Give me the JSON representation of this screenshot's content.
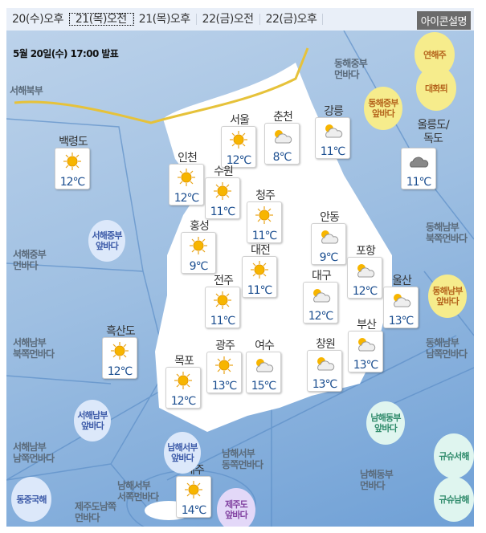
{
  "tabs": [
    {
      "label": "20(수)오후",
      "active": false
    },
    {
      "label": "21(목)오전",
      "active": true
    },
    {
      "label": "21(목)오후",
      "active": false
    },
    {
      "label": "22(금)오전",
      "active": false
    },
    {
      "label": "22(금)오후",
      "active": false
    }
  ],
  "legend_button": "아이콘설명",
  "issued": "5월 20일(수) 17:00 발표",
  "cities": [
    {
      "name": "백령도",
      "temp": "12℃",
      "icon": "sun-icon"
    },
    {
      "name": "서울",
      "temp": "12℃",
      "icon": "sun-icon"
    },
    {
      "name": "춘천",
      "temp": "8℃",
      "icon": "partly-cloudy-icon"
    },
    {
      "name": "강릉",
      "temp": "11℃",
      "icon": "partly-cloudy-icon"
    },
    {
      "name": "울릉도/독도",
      "temp": "11℃",
      "icon": "cloudy-icon"
    },
    {
      "name": "인천",
      "temp": "12℃",
      "icon": "sun-icon"
    },
    {
      "name": "수원",
      "temp": "11℃",
      "icon": "sun-icon"
    },
    {
      "name": "청주",
      "temp": "11℃",
      "icon": "sun-icon"
    },
    {
      "name": "홍성",
      "temp": "9℃",
      "icon": "sun-icon"
    },
    {
      "name": "안동",
      "temp": "9℃",
      "icon": "partly-cloudy-icon"
    },
    {
      "name": "대전",
      "temp": "11℃",
      "icon": "sun-icon"
    },
    {
      "name": "포항",
      "temp": "12℃",
      "icon": "partly-cloudy-icon"
    },
    {
      "name": "전주",
      "temp": "11℃",
      "icon": "sun-icon"
    },
    {
      "name": "대구",
      "temp": "12℃",
      "icon": "partly-cloudy-icon"
    },
    {
      "name": "울산",
      "temp": "13℃",
      "icon": "partly-cloudy-icon"
    },
    {
      "name": "흑산도",
      "temp": "12℃",
      "icon": "sun-icon"
    },
    {
      "name": "광주",
      "temp": "13℃",
      "icon": "sun-icon"
    },
    {
      "name": "여수",
      "temp": "15℃",
      "icon": "partly-cloudy-icon"
    },
    {
      "name": "부산",
      "temp": "13℃",
      "icon": "partly-cloudy-icon"
    },
    {
      "name": "창원",
      "temp": "13℃",
      "icon": "partly-cloudy-icon"
    },
    {
      "name": "목포",
      "temp": "12℃",
      "icon": "sun-icon"
    },
    {
      "name": "제주",
      "temp": "14℃",
      "icon": "sun-icon"
    }
  ],
  "sea_areas": [
    "서해북부",
    "동해중부\n먼바다",
    "서해중부\n먼바다",
    "동해남부\n북쪽먼바다",
    "서해남부\n북쪽먼바다",
    "동해남부\n남쪽먼바다",
    "서해남부\n남쪽먼바다",
    "남해서부\n서쪽먼바다",
    "남해서부\n동쪽먼바다",
    "남해동부\n먼바다",
    "제주도남쪽\n먼바다"
  ],
  "bubbles": [
    {
      "label": "연해주",
      "color": "yellow"
    },
    {
      "label": "대화퇴",
      "color": "yellow"
    },
    {
      "label": "동해중부\n앞바다",
      "color": "yellow"
    },
    {
      "label": "동해남부\n앞바다",
      "color": "yellow"
    },
    {
      "label": "서해중부\n앞바다",
      "color": "blue"
    },
    {
      "label": "서해남부\n앞바다",
      "color": "blue"
    },
    {
      "label": "남해서부\n앞바다",
      "color": "blue"
    },
    {
      "label": "동중국해",
      "color": "blue"
    },
    {
      "label": "남해동부\n앞바다",
      "color": "green"
    },
    {
      "label": "규슈서해",
      "color": "green"
    },
    {
      "label": "규슈남해",
      "color": "green"
    },
    {
      "label": "제주도\n앞바다",
      "color": "purple"
    }
  ]
}
